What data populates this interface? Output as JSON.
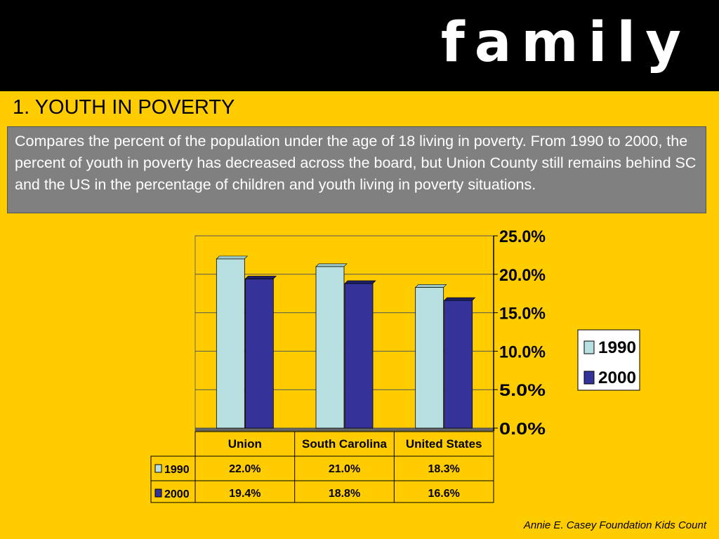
{
  "header": {
    "brand": "family"
  },
  "section": {
    "title": "1.  YOUTH IN POVERTY",
    "description": "Compares the percent of the population under the age of 18 living in poverty.  From 1990 to 2000, the percent of youth in poverty has decreased across the board, but Union County still remains behind SC and the US in the percentage of children and youth living in poverty situations."
  },
  "source": "Annie E. Casey Foundation Kids Count",
  "colors": {
    "series_1990": "#B8E0E0",
    "series_2000": "#333399",
    "background": "#FFCC00",
    "description_bg": "#808080"
  },
  "chart_data": {
    "type": "bar",
    "categories": [
      "Union",
      "South Carolina",
      "United States"
    ],
    "series": [
      {
        "name": "1990",
        "values": [
          22.0,
          21.0,
          18.3
        ],
        "labels": [
          "22.0%",
          "21.0%",
          "18.3%"
        ]
      },
      {
        "name": "2000",
        "values": [
          19.4,
          18.8,
          16.6
        ],
        "labels": [
          "19.4%",
          "18.8%",
          "16.6%"
        ]
      }
    ],
    "ylim": [
      0,
      25
    ],
    "yticks": [
      "0.0%",
      "5.0%",
      "10.0%",
      "15.0%",
      "20.0%",
      "25.0%"
    ],
    "grid": true,
    "legend": "right",
    "data_table": true
  }
}
